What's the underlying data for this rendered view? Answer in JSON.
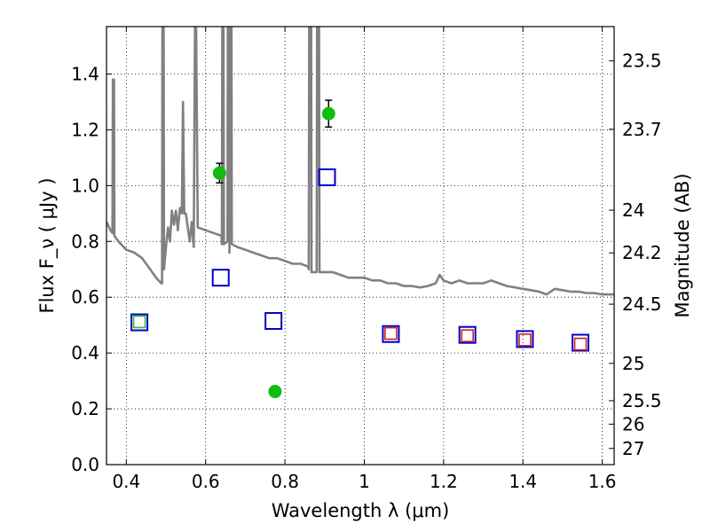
{
  "chart_data": {
    "type": "scatter",
    "title": "",
    "xlabel": "Wavelength  λ (μm)",
    "ylabel": "Flux  F_ν  ( μJy )",
    "ylabel_right": "Magnitude (AB)",
    "xlim": [
      0.35,
      1.63
    ],
    "ylim": [
      0.0,
      1.57
    ],
    "grid": true,
    "x_ticks": [
      0.4,
      0.6,
      0.8,
      1.0,
      1.2,
      1.4,
      1.6
    ],
    "x_tick_labels": [
      "0.4",
      "0.6",
      "0.8",
      "1",
      "1.2",
      "1.4",
      "1.6"
    ],
    "y_ticks": [
      0.0,
      0.2,
      0.4,
      0.6,
      0.8,
      1.0,
      1.2,
      1.4
    ],
    "y_tick_labels": [
      "0.0",
      "0.2",
      "0.4",
      "0.6",
      "0.8",
      "1.0",
      "1.2",
      "1.4"
    ],
    "right_ticks": [
      {
        "label": "23.5",
        "flux": 1.447
      },
      {
        "label": "23.7",
        "flux": 1.202
      },
      {
        "label": "24",
        "flux": 0.912
      },
      {
        "label": "24.2",
        "flux": 0.759
      },
      {
        "label": "24.5",
        "flux": 0.575
      },
      {
        "label": "25",
        "flux": 0.363
      },
      {
        "label": "25.5",
        "flux": 0.229
      },
      {
        "label": "26",
        "flux": 0.145
      },
      {
        "label": "27",
        "flux": 0.058
      }
    ],
    "series": [
      {
        "kind": "spectrum",
        "color": "#808080",
        "points": [
          [
            0.35,
            0.87
          ],
          [
            0.36,
            0.84
          ],
          [
            0.365,
            0.83
          ],
          [
            0.366,
            1.38
          ],
          [
            0.369,
            1.38
          ],
          [
            0.37,
            0.82
          ],
          [
            0.38,
            0.8
          ],
          [
            0.4,
            0.77
          ],
          [
            0.42,
            0.76
          ],
          [
            0.44,
            0.74
          ],
          [
            0.46,
            0.7
          ],
          [
            0.475,
            0.67
          ],
          [
            0.488,
            0.65
          ],
          [
            0.49,
            0.65
          ],
          [
            0.491,
            1.57
          ],
          [
            0.494,
            1.57
          ],
          [
            0.495,
            0.7
          ],
          [
            0.5,
            0.78
          ],
          [
            0.505,
            0.85
          ],
          [
            0.51,
            0.8
          ],
          [
            0.515,
            0.91
          ],
          [
            0.52,
            0.86
          ],
          [
            0.525,
            0.91
          ],
          [
            0.53,
            0.84
          ],
          [
            0.535,
            0.92
          ],
          [
            0.54,
            0.9
          ],
          [
            0.543,
            1.3
          ],
          [
            0.546,
            0.9
          ],
          [
            0.55,
            0.9
          ],
          [
            0.56,
            0.8
          ],
          [
            0.565,
            0.87
          ],
          [
            0.57,
            0.78
          ],
          [
            0.573,
            1.57
          ],
          [
            0.576,
            1.57
          ],
          [
            0.58,
            0.85
          ],
          [
            0.6,
            0.84
          ],
          [
            0.62,
            0.83
          ],
          [
            0.64,
            0.82
          ],
          [
            0.641,
            0.79
          ],
          [
            0.642,
            1.57
          ],
          [
            0.645,
            1.57
          ],
          [
            0.646,
            0.79
          ],
          [
            0.655,
            0.8
          ],
          [
            0.656,
            1.57
          ],
          [
            0.659,
            1.57
          ],
          [
            0.66,
            0.76
          ],
          [
            0.662,
            1.57
          ],
          [
            0.665,
            1.57
          ],
          [
            0.666,
            0.79
          ],
          [
            0.68,
            0.78
          ],
          [
            0.7,
            0.77
          ],
          [
            0.72,
            0.76
          ],
          [
            0.74,
            0.75
          ],
          [
            0.76,
            0.74
          ],
          [
            0.78,
            0.74
          ],
          [
            0.8,
            0.73
          ],
          [
            0.82,
            0.72
          ],
          [
            0.84,
            0.72
          ],
          [
            0.858,
            0.71
          ],
          [
            0.86,
            0.7
          ],
          [
            0.861,
            1.57
          ],
          [
            0.866,
            1.57
          ],
          [
            0.867,
            0.69
          ],
          [
            0.878,
            0.69
          ],
          [
            0.88,
            0.69
          ],
          [
            0.881,
            1.57
          ],
          [
            0.886,
            1.57
          ],
          [
            0.887,
            0.69
          ],
          [
            0.9,
            0.69
          ],
          [
            0.92,
            0.69
          ],
          [
            0.94,
            0.68
          ],
          [
            0.96,
            0.67
          ],
          [
            0.98,
            0.67
          ],
          [
            1.0,
            0.67
          ],
          [
            1.02,
            0.66
          ],
          [
            1.04,
            0.66
          ],
          [
            1.06,
            0.65
          ],
          [
            1.08,
            0.65
          ],
          [
            1.1,
            0.64
          ],
          [
            1.12,
            0.64
          ],
          [
            1.14,
            0.635
          ],
          [
            1.16,
            0.64
          ],
          [
            1.18,
            0.65
          ],
          [
            1.19,
            0.68
          ],
          [
            1.2,
            0.66
          ],
          [
            1.22,
            0.65
          ],
          [
            1.24,
            0.66
          ],
          [
            1.26,
            0.65
          ],
          [
            1.28,
            0.65
          ],
          [
            1.3,
            0.65
          ],
          [
            1.32,
            0.66
          ],
          [
            1.34,
            0.65
          ],
          [
            1.36,
            0.64
          ],
          [
            1.38,
            0.635
          ],
          [
            1.4,
            0.63
          ],
          [
            1.42,
            0.625
          ],
          [
            1.44,
            0.62
          ],
          [
            1.46,
            0.61
          ],
          [
            1.48,
            0.63
          ],
          [
            1.5,
            0.625
          ],
          [
            1.52,
            0.62
          ],
          [
            1.54,
            0.62
          ],
          [
            1.56,
            0.615
          ],
          [
            1.58,
            0.615
          ],
          [
            1.6,
            0.61
          ],
          [
            1.63,
            0.61
          ]
        ]
      },
      {
        "kind": "measured",
        "color": "#11bb11",
        "points": [
          {
            "x": 0.635,
            "y": 1.045,
            "err": 0.035
          },
          {
            "x": 0.775,
            "y": 0.262,
            "err": 0.018
          },
          {
            "x": 0.91,
            "y": 1.258,
            "err": 0.048
          }
        ]
      },
      {
        "kind": "model_blue",
        "color": "#0000cc",
        "points": [
          {
            "x": 0.433,
            "y": 0.51
          },
          {
            "x": 0.638,
            "y": 0.67
          },
          {
            "x": 0.771,
            "y": 0.515
          },
          {
            "x": 0.906,
            "y": 1.03
          },
          {
            "x": 1.067,
            "y": 0.468
          },
          {
            "x": 1.26,
            "y": 0.465
          },
          {
            "x": 1.405,
            "y": 0.45
          },
          {
            "x": 1.545,
            "y": 0.437
          }
        ]
      },
      {
        "kind": "model_red",
        "color": "#cc2222",
        "points": [
          {
            "x": 1.067,
            "y": 0.47
          },
          {
            "x": 1.26,
            "y": 0.462
          },
          {
            "x": 1.405,
            "y": 0.447
          },
          {
            "x": 1.545,
            "y": 0.432
          }
        ]
      },
      {
        "kind": "model_green",
        "color": "#33bb33",
        "points": [
          {
            "x": 0.433,
            "y": 0.512
          }
        ]
      }
    ]
  }
}
